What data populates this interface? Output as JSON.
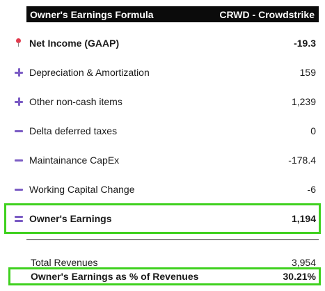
{
  "header": {
    "title": "Owner's Earnings Formula",
    "company": "CRWD - Crowdstrike"
  },
  "rows": [
    {
      "icon": "pin-icon",
      "label": "Net Income (GAAP)",
      "value": "-19.3"
    },
    {
      "icon": "plus-icon",
      "label": "Depreciation & Amortization",
      "value": "159"
    },
    {
      "icon": "plus-icon",
      "label": "Other non-cash items",
      "value": "1,239"
    },
    {
      "icon": "minus-icon",
      "label": "Delta deferred taxes",
      "value": "0"
    },
    {
      "icon": "minus-icon",
      "label": "Maintainance CapEx",
      "value": "-178.4"
    },
    {
      "icon": "minus-icon",
      "label": "Working Capital Change",
      "value": "-6"
    },
    {
      "icon": "equals-icon",
      "label": "Owner's Earnings",
      "value": "1,194"
    }
  ],
  "summary": {
    "total_revenues_label": "Total Revenues",
    "total_revenues_value": "3,954",
    "pct_label": "Owner's Earnings as % of Revenues",
    "pct_value": "30.21%"
  },
  "colors": {
    "header_bg": "#0b0b0b",
    "accent": "#7b5cc4",
    "highlight": "#3fd11f",
    "pin": "#e23b4e"
  }
}
